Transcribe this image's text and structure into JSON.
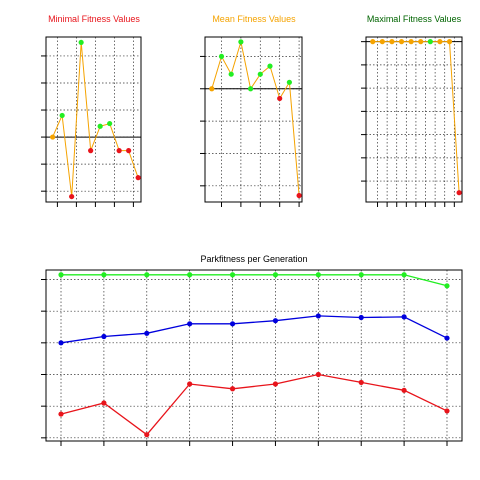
{
  "colors": {
    "orange": "#f5a300",
    "green": "#22ee22",
    "red": "#e8141b",
    "blue": "#0000dd",
    "dark_green": "#006400",
    "line": "#f5a300",
    "axis": "#000000",
    "grid": "#333333"
  },
  "chart_data": [
    {
      "type": "line",
      "title": "Minimal Fitness Values",
      "title_color": "#e8141b",
      "grid": true,
      "x": [
        1,
        2,
        3,
        4,
        5,
        6,
        7,
        8,
        9,
        10
      ],
      "values": [
        0.0,
        0.8,
        -2.2,
        3.5,
        -0.5,
        0.4,
        0.5,
        -0.5,
        -0.5,
        -1.5
      ],
      "point_colors": [
        "#f5a300",
        "#22ee22",
        "#e8141b",
        "#22ee22",
        "#e8141b",
        "#22ee22",
        "#22ee22",
        "#e8141b",
        "#e8141b",
        "#e8141b"
      ],
      "reference_line": 0.0,
      "xlim": [
        0.3,
        10.3
      ],
      "ylim": [
        -2.4,
        3.7
      ],
      "xticks": [
        1.5,
        3.5,
        5.5,
        7.5,
        9.5
      ],
      "yticks": [
        -2,
        -1,
        0,
        1,
        2,
        3
      ]
    },
    {
      "type": "line",
      "title": "Mean Fitness Values",
      "title_color": "#f5a300",
      "grid": true,
      "x": [
        1,
        2,
        3,
        4,
        5,
        6,
        7,
        8,
        9,
        10
      ],
      "values": [
        0.0,
        1.0,
        0.45,
        1.45,
        0.0,
        0.45,
        0.7,
        -0.3,
        0.2,
        -3.3
      ],
      "point_colors": [
        "#f5a300",
        "#22ee22",
        "#22ee22",
        "#22ee22",
        "#22ee22",
        "#22ee22",
        "#22ee22",
        "#e8141b",
        "#22ee22",
        "#e8141b"
      ],
      "reference_line": 0.0,
      "xlim": [
        0.3,
        10.3
      ],
      "ylim": [
        -3.5,
        1.6
      ],
      "xticks": [
        2,
        4,
        6,
        8,
        10
      ],
      "yticks": [
        -3,
        -2,
        -1,
        0,
        1
      ]
    },
    {
      "type": "line",
      "title": "Maximal Fitness Values",
      "title_color": "#006400",
      "grid": true,
      "x": [
        1,
        2,
        3,
        4,
        5,
        6,
        7,
        8,
        9,
        10
      ],
      "values": [
        0.0,
        0.0,
        0.0,
        0.0,
        0.0,
        0.0,
        0.0,
        0.0,
        0.0,
        -6.5
      ],
      "point_colors": [
        "#f5a300",
        "#f5a300",
        "#f5a300",
        "#f5a300",
        "#f5a300",
        "#f5a300",
        "#22ee22",
        "#f5a300",
        "#f5a300",
        "#e8141b"
      ],
      "reference_line": 0.0,
      "xlim": [
        0.3,
        10.3
      ],
      "ylim": [
        -6.9,
        0.2
      ],
      "xticks": [
        1.5,
        2.5,
        3.5,
        4.5,
        5.5,
        6.5,
        7.5,
        8.5,
        9.5
      ],
      "yticks": [
        -6,
        -5,
        -4,
        -3,
        -2,
        -1,
        0
      ]
    },
    {
      "type": "line",
      "title": "Parkfitness per Generation",
      "title_color": "#000000",
      "grid": true,
      "x": [
        1,
        2,
        3,
        4,
        5,
        6,
        7,
        8,
        9,
        10
      ],
      "xlim": [
        0.65,
        10.35
      ],
      "ylim": [
        -0.1,
        5.3
      ],
      "xticks": [
        1,
        2,
        3,
        4,
        5,
        6,
        7,
        8,
        9,
        10
      ],
      "yticks": [
        0,
        1,
        2,
        3,
        4,
        5
      ],
      "series": [
        {
          "values": [
            5.15,
            5.15,
            5.15,
            5.15,
            5.15,
            5.15,
            5.15,
            5.15,
            5.15,
            4.8
          ],
          "color": "#22ee22"
        },
        {
          "values": [
            3.0,
            3.2,
            3.3,
            3.6,
            3.6,
            3.7,
            3.85,
            3.8,
            3.82,
            3.15
          ],
          "color": "#0000dd"
        },
        {
          "values": [
            0.75,
            1.1,
            0.1,
            1.7,
            1.55,
            1.7,
            2.0,
            1.75,
            1.5,
            0.85
          ],
          "color": "#e8141b"
        }
      ]
    }
  ]
}
